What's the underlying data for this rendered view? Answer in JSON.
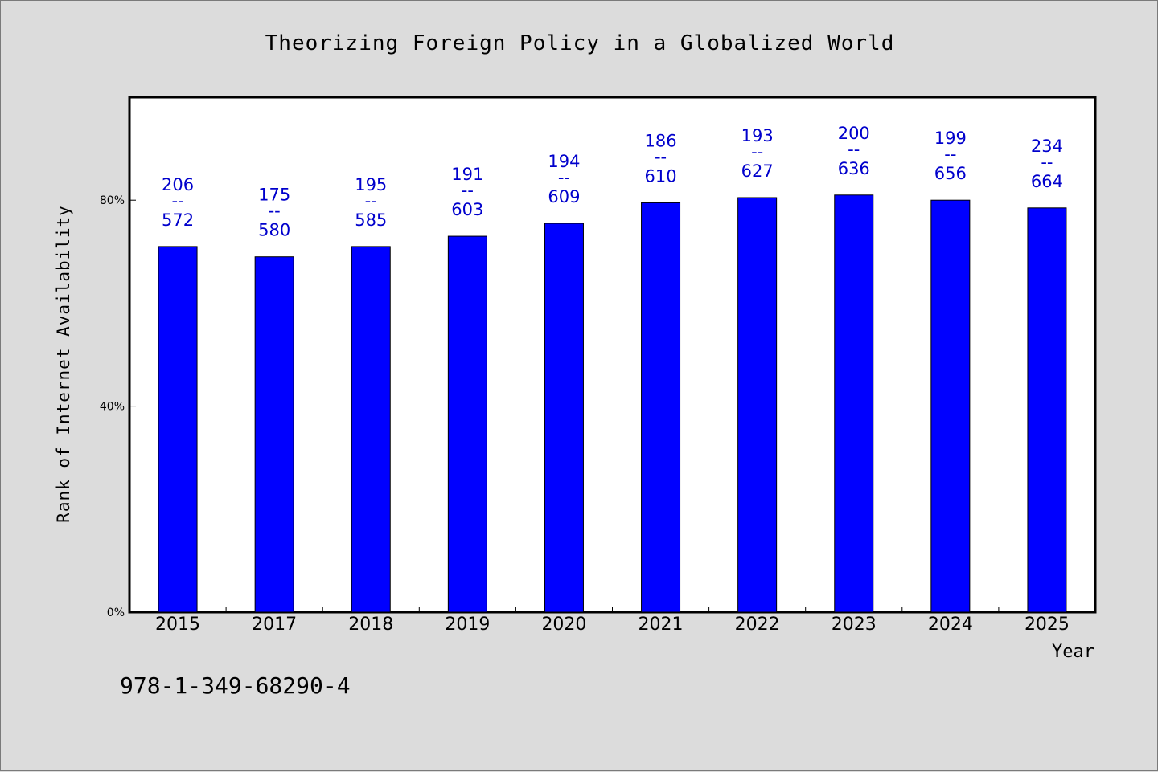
{
  "chart_data": {
    "type": "bar",
    "title": "Theorizing Foreign Policy in a Globalized World",
    "xlabel": "Year",
    "ylabel": "Rank of Internet Availability",
    "categories": [
      "2015",
      "2017",
      "2018",
      "2019",
      "2020",
      "2021",
      "2022",
      "2023",
      "2024",
      "2025"
    ],
    "series": [
      {
        "values": [
          0.71,
          0.69,
          0.71,
          0.73,
          0.755,
          0.795,
          0.805,
          0.81,
          0.8,
          0.785
        ]
      }
    ],
    "data_labels": [
      {
        "top": "206",
        "sep": "--",
        "bottom": "572"
      },
      {
        "top": "175",
        "sep": "--",
        "bottom": "580"
      },
      {
        "top": "195",
        "sep": "--",
        "bottom": "585"
      },
      {
        "top": "191",
        "sep": "--",
        "bottom": "603"
      },
      {
        "top": "194",
        "sep": "--",
        "bottom": "609"
      },
      {
        "top": "186",
        "sep": "--",
        "bottom": "610"
      },
      {
        "top": "193",
        "sep": "--",
        "bottom": "627"
      },
      {
        "top": "200",
        "sep": "--",
        "bottom": "636"
      },
      {
        "top": "199",
        "sep": "--",
        "bottom": "656"
      },
      {
        "top": "234",
        "sep": "--",
        "bottom": "664"
      }
    ],
    "ylim": [
      0,
      1.0
    ],
    "yticks": [
      {
        "value": 0,
        "label": "0%"
      },
      {
        "value": 0.4,
        "label": "40%"
      },
      {
        "value": 0.8,
        "label": "80%"
      }
    ],
    "grid": false,
    "colors": {
      "bar": "#0000ff",
      "data_label": "#0000cc",
      "background": "#dcdcdc",
      "plot_background": "#ffffff"
    }
  },
  "footnote": "978-1-349-68290-4"
}
